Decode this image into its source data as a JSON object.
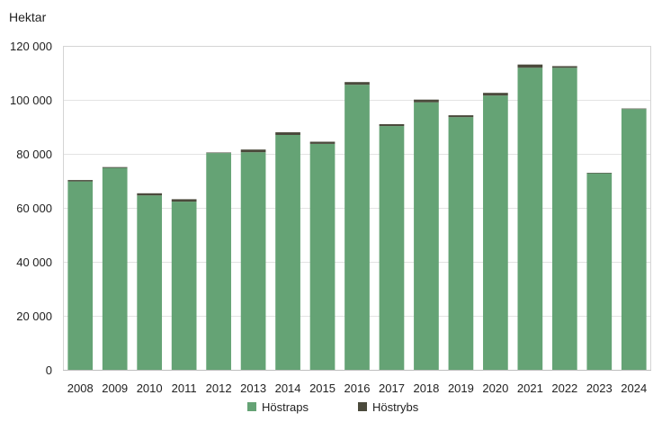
{
  "chart_data": {
    "type": "bar",
    "stacked": true,
    "unit_label": "Hektar",
    "categories": [
      "2008",
      "2009",
      "2010",
      "2011",
      "2012",
      "2013",
      "2014",
      "2015",
      "2016",
      "2017",
      "2018",
      "2019",
      "2020",
      "2021",
      "2022",
      "2023",
      "2024"
    ],
    "series": [
      {
        "name": "Höstraps",
        "color": "#65a375",
        "values": [
          69800,
          74800,
          64600,
          62300,
          80300,
          80600,
          87000,
          83700,
          105600,
          90300,
          99100,
          93600,
          101600,
          111900,
          111900,
          72800,
          96600
        ]
      },
      {
        "name": "Höstrybs",
        "color": "#4b4a3c",
        "values": [
          500,
          300,
          800,
          900,
          200,
          1000,
          1000,
          800,
          1000,
          700,
          1000,
          700,
          1000,
          1200,
          600,
          200,
          200
        ]
      }
    ],
    "y_ticks": [
      "0",
      "20 000",
      "40 000",
      "60 000",
      "80 000",
      "100 000",
      "120 000"
    ],
    "ylim": [
      0,
      120000
    ],
    "grid": true,
    "legend_position": "bottom"
  }
}
